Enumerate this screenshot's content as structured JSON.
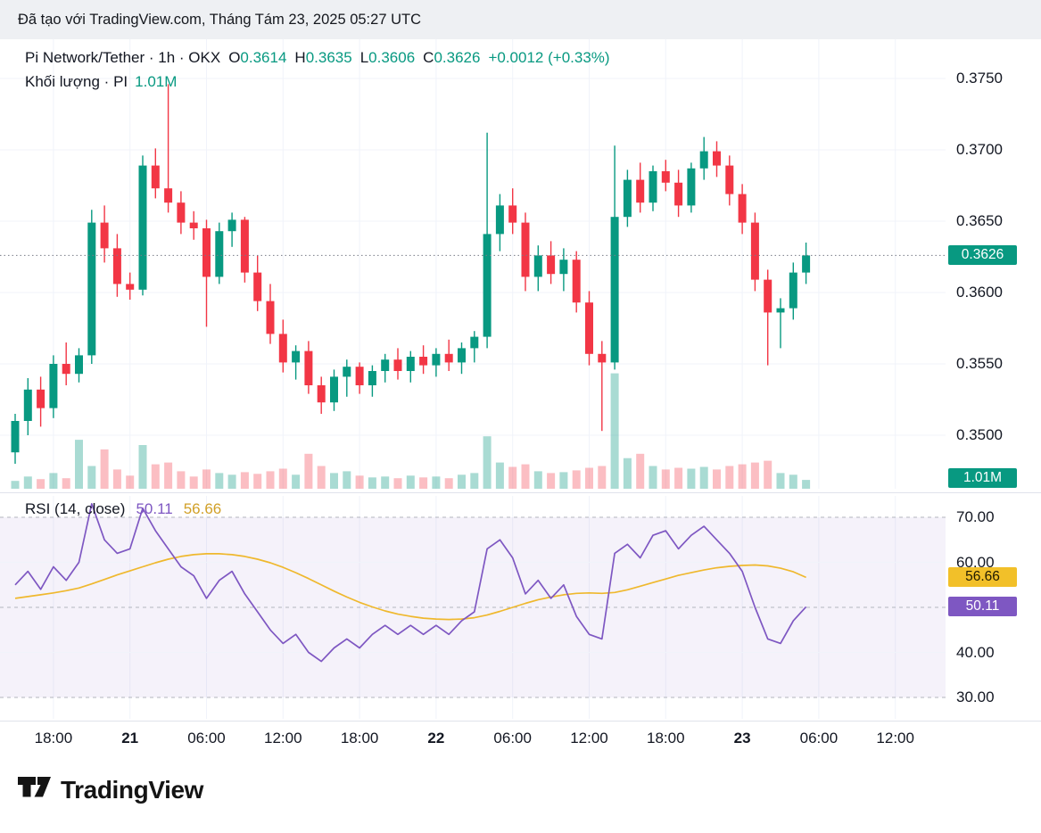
{
  "header": {
    "attribution": "Đã tạo với TradingView.com, Tháng Tám 23, 2025 05:27 UTC"
  },
  "legend": {
    "title": "Pi Network/Tether · 1h · OKX",
    "ohlc": {
      "o_label": "O",
      "o": "0.3614",
      "h_label": "H",
      "h": "0.3635",
      "l_label": "L",
      "l": "0.3606",
      "c_label": "C",
      "c": "0.3626",
      "change": "+0.0012 (+0.33%)"
    },
    "volume_title": "Khối lượng · PI",
    "volume_value": "1.01M"
  },
  "rsi_legend": {
    "title": "RSI (14, close)",
    "main_value": "50.11",
    "ma_value": "56.66"
  },
  "price_axis": {
    "labels": [
      "0.3750",
      "0.3700",
      "0.3650",
      "0.3600",
      "0.3550",
      "0.3500"
    ],
    "last_price_badge": "0.3626",
    "volume_badge": "1.01M"
  },
  "rsi_axis": {
    "labels": [
      "70.00",
      "60.00",
      "40.00",
      "30.00"
    ],
    "ma_badge": "56.66",
    "main_badge": "50.11"
  },
  "time_axis": {
    "labels": [
      {
        "text": "18:00",
        "i": 3,
        "major": false
      },
      {
        "text": "21",
        "i": 9,
        "major": true
      },
      {
        "text": "06:00",
        "i": 15,
        "major": false
      },
      {
        "text": "12:00",
        "i": 21,
        "major": false
      },
      {
        "text": "18:00",
        "i": 27,
        "major": false
      },
      {
        "text": "22",
        "i": 33,
        "major": true
      },
      {
        "text": "06:00",
        "i": 39,
        "major": false
      },
      {
        "text": "12:00",
        "i": 45,
        "major": false
      },
      {
        "text": "18:00",
        "i": 51,
        "major": false
      },
      {
        "text": "23",
        "i": 57,
        "major": true
      },
      {
        "text": "06:00",
        "i": 63,
        "major": false
      },
      {
        "text": "12:00",
        "i": 69,
        "major": false
      }
    ]
  },
  "footer": {
    "brand": "TradingView"
  },
  "colors": {
    "up": "#089981",
    "down": "#f23645",
    "vol_up": "rgba(8,153,129,0.35)",
    "vol_down": "rgba(242,54,69,0.32)",
    "grid": "#f0f3fa",
    "level_dash": "#b2b5be",
    "rsi_band": "rgba(126,87,194,0.08)",
    "rsi_main": "#7e57c2",
    "rsi_ma": "#efb82d",
    "last_price_line": "#787b86",
    "badge_teal": "#089981",
    "badge_yellow": "#f2c029",
    "badge_purple": "#7e57c2",
    "text": "#131722",
    "header_bg": "#eef0f3"
  },
  "chart_data": {
    "type": "candlestick",
    "symbol": "Pi Network/Tether",
    "interval": "1h",
    "exchange": "OKX",
    "current": {
      "open": 0.3614,
      "high": 0.3635,
      "low": 0.3606,
      "close": 0.3626,
      "change": "+0.0012",
      "change_pct": "+0.33%",
      "volume": "1.01M"
    },
    "price_axis_range": [
      0.348,
      0.3765
    ],
    "rsi_axis_range": [
      25,
      75
    ],
    "rsi_levels_dashed": [
      70,
      50,
      30
    ],
    "rsi_grid_solid": [
      60,
      40
    ],
    "columns": [
      "time",
      "open",
      "high",
      "low",
      "close",
      "volume_millions"
    ],
    "candles": [
      [
        "08-20 15:00",
        0.3488,
        0.3515,
        0.348,
        0.351,
        0.9
      ],
      [
        "08-20 16:00",
        0.351,
        0.354,
        0.35,
        0.3532,
        1.4
      ],
      [
        "08-20 17:00",
        0.3532,
        0.3541,
        0.3506,
        0.3519,
        1.1
      ],
      [
        "08-20 18:00",
        0.3519,
        0.3556,
        0.3512,
        0.355,
        1.8
      ],
      [
        "08-20 19:00",
        0.355,
        0.3565,
        0.3535,
        0.3543,
        1.2
      ],
      [
        "08-20 20:00",
        0.3543,
        0.3561,
        0.3537,
        0.3556,
        5.6
      ],
      [
        "08-20 21:00",
        0.3556,
        0.3658,
        0.355,
        0.3649,
        2.6
      ],
      [
        "08-20 22:00",
        0.3649,
        0.3661,
        0.3621,
        0.3631,
        4.5
      ],
      [
        "08-20 23:00",
        0.3631,
        0.3641,
        0.3597,
        0.3606,
        2.2
      ],
      [
        "08-21 00:00",
        0.3606,
        0.3614,
        0.3595,
        0.3602,
        1.5
      ],
      [
        "08-21 01:00",
        0.3602,
        0.3696,
        0.3598,
        0.3689,
        5.0
      ],
      [
        "08-21 02:00",
        0.3689,
        0.3701,
        0.3666,
        0.3673,
        2.8
      ],
      [
        "08-21 03:00",
        0.3673,
        0.3746,
        0.3656,
        0.3663,
        3.0
      ],
      [
        "08-21 04:00",
        0.3663,
        0.3671,
        0.3641,
        0.3649,
        2.0
      ],
      [
        "08-21 05:00",
        0.3649,
        0.3657,
        0.3637,
        0.3645,
        1.4
      ],
      [
        "08-21 06:00",
        0.3645,
        0.3651,
        0.3576,
        0.3611,
        2.2
      ],
      [
        "08-21 07:00",
        0.3611,
        0.3649,
        0.3606,
        0.3643,
        1.8
      ],
      [
        "08-21 08:00",
        0.3643,
        0.3656,
        0.3632,
        0.3651,
        1.6
      ],
      [
        "08-21 09:00",
        0.3651,
        0.3653,
        0.3607,
        0.3614,
        1.9
      ],
      [
        "08-21 10:00",
        0.3614,
        0.3626,
        0.3587,
        0.3594,
        1.7
      ],
      [
        "08-21 11:00",
        0.3594,
        0.3606,
        0.3564,
        0.3571,
        2.0
      ],
      [
        "08-21 12:00",
        0.3571,
        0.3581,
        0.3544,
        0.3551,
        2.3
      ],
      [
        "08-21 13:00",
        0.3551,
        0.3563,
        0.3539,
        0.3559,
        1.6
      ],
      [
        "08-21 14:00",
        0.3559,
        0.3566,
        0.3529,
        0.3535,
        4.0
      ],
      [
        "08-21 15:00",
        0.3535,
        0.3541,
        0.3515,
        0.3523,
        2.6
      ],
      [
        "08-21 16:00",
        0.3523,
        0.3546,
        0.3517,
        0.3541,
        1.8
      ],
      [
        "08-21 17:00",
        0.3541,
        0.3553,
        0.3527,
        0.3548,
        2.0
      ],
      [
        "08-21 18:00",
        0.3548,
        0.3551,
        0.3529,
        0.3535,
        1.5
      ],
      [
        "08-21 19:00",
        0.3535,
        0.3549,
        0.3527,
        0.3545,
        1.3
      ],
      [
        "08-21 20:00",
        0.3545,
        0.3557,
        0.3537,
        0.3553,
        1.4
      ],
      [
        "08-21 21:00",
        0.3553,
        0.3561,
        0.3539,
        0.3545,
        1.2
      ],
      [
        "08-21 22:00",
        0.3545,
        0.3559,
        0.3537,
        0.3555,
        1.5
      ],
      [
        "08-21 23:00",
        0.3555,
        0.3563,
        0.3543,
        0.3549,
        1.3
      ],
      [
        "08-22 00:00",
        0.3549,
        0.3561,
        0.3541,
        0.3557,
        1.4
      ],
      [
        "08-22 01:00",
        0.3557,
        0.3567,
        0.3545,
        0.3551,
        1.2
      ],
      [
        "08-22 02:00",
        0.3551,
        0.3565,
        0.3543,
        0.3561,
        1.6
      ],
      [
        "08-22 03:00",
        0.3561,
        0.3573,
        0.3551,
        0.3569,
        1.8
      ],
      [
        "08-22 04:00",
        0.3569,
        0.3712,
        0.3561,
        0.3641,
        6.0
      ],
      [
        "08-22 05:00",
        0.3641,
        0.3669,
        0.3629,
        0.3661,
        3.0
      ],
      [
        "08-22 06:00",
        0.3661,
        0.3673,
        0.3641,
        0.3649,
        2.5
      ],
      [
        "08-22 07:00",
        0.3649,
        0.3656,
        0.3601,
        0.3611,
        2.8
      ],
      [
        "08-22 08:00",
        0.3611,
        0.3633,
        0.3601,
        0.3626,
        2.0
      ],
      [
        "08-22 09:00",
        0.3626,
        0.3636,
        0.3606,
        0.3613,
        1.8
      ],
      [
        "08-22 10:00",
        0.3613,
        0.3631,
        0.3601,
        0.3623,
        1.9
      ],
      [
        "08-22 11:00",
        0.3623,
        0.3629,
        0.3586,
        0.3593,
        2.1
      ],
      [
        "08-22 12:00",
        0.3593,
        0.3601,
        0.3549,
        0.3557,
        2.4
      ],
      [
        "08-22 13:00",
        0.3557,
        0.3566,
        0.3503,
        0.3551,
        2.6
      ],
      [
        "08-22 14:00",
        0.3551,
        0.3703,
        0.3546,
        0.3653,
        13.2
      ],
      [
        "08-22 15:00",
        0.3653,
        0.3686,
        0.3646,
        0.3679,
        3.5
      ],
      [
        "08-22 16:00",
        0.3679,
        0.3691,
        0.3656,
        0.3663,
        4.0
      ],
      [
        "08-22 17:00",
        0.3663,
        0.3689,
        0.3657,
        0.3685,
        2.6
      ],
      [
        "08-22 18:00",
        0.3685,
        0.3693,
        0.3671,
        0.3677,
        2.2
      ],
      [
        "08-22 19:00",
        0.3677,
        0.3686,
        0.3653,
        0.3661,
        2.4
      ],
      [
        "08-22 20:00",
        0.3661,
        0.3691,
        0.3656,
        0.3687,
        2.3
      ],
      [
        "08-22 21:00",
        0.3687,
        0.3709,
        0.3679,
        0.3699,
        2.5
      ],
      [
        "08-22 22:00",
        0.3699,
        0.3706,
        0.3681,
        0.3689,
        2.2
      ],
      [
        "08-22 23:00",
        0.3689,
        0.3696,
        0.3661,
        0.3669,
        2.6
      ],
      [
        "08-23 00:00",
        0.3669,
        0.3676,
        0.3641,
        0.3649,
        2.8
      ],
      [
        "08-23 01:00",
        0.3649,
        0.3656,
        0.3601,
        0.3609,
        3.0
      ],
      [
        "08-23 02:00",
        0.3609,
        0.3616,
        0.3549,
        0.3586,
        3.2
      ],
      [
        "08-23 03:00",
        0.3586,
        0.3596,
        0.3561,
        0.3589,
        1.8
      ],
      [
        "08-23 04:00",
        0.3589,
        0.3621,
        0.3581,
        0.3614,
        1.6
      ],
      [
        "08-23 05:00",
        0.3614,
        0.3635,
        0.3606,
        0.3626,
        1.01
      ]
    ],
    "rsi_series": [
      55,
      58,
      54,
      59,
      56,
      60,
      73,
      65,
      62,
      63,
      72,
      67,
      63,
      59,
      57,
      52,
      56,
      58,
      53,
      49,
      45,
      42,
      44,
      40,
      38,
      41,
      43,
      41,
      44,
      46,
      44,
      46,
      44,
      46,
      44,
      47,
      49,
      63,
      65,
      61,
      53,
      56,
      52,
      55,
      48,
      44,
      43,
      62,
      64,
      61,
      66,
      67,
      63,
      66,
      68,
      65,
      62,
      58,
      50,
      43,
      42,
      47,
      50.11
    ],
    "rsi_ma_series": [
      52.0,
      52.4,
      52.8,
      53.2,
      53.7,
      54.3,
      55.2,
      56.2,
      57.2,
      58.1,
      59.0,
      59.9,
      60.7,
      61.3,
      61.7,
      61.9,
      61.9,
      61.7,
      61.3,
      60.7,
      59.9,
      58.9,
      57.7,
      56.4,
      55.0,
      53.6,
      52.3,
      51.1,
      50.1,
      49.2,
      48.5,
      48.0,
      47.6,
      47.4,
      47.3,
      47.4,
      47.7,
      48.3,
      49.1,
      50.0,
      50.9,
      51.7,
      52.3,
      52.8,
      53.1,
      53.2,
      53.1,
      53.3,
      53.9,
      54.7,
      55.5,
      56.3,
      57.1,
      57.7,
      58.3,
      58.8,
      59.1,
      59.3,
      59.4,
      59.2,
      58.7,
      57.9,
      56.66
    ]
  }
}
